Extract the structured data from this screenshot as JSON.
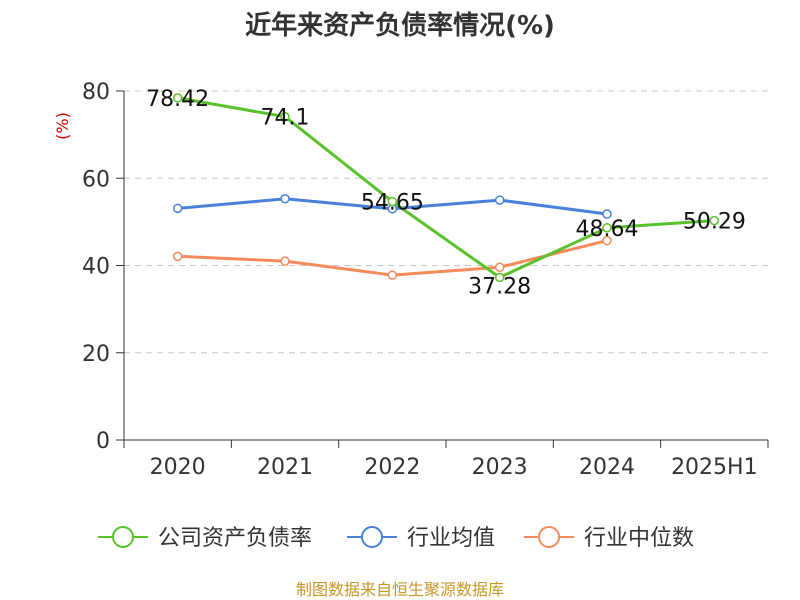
{
  "chart_data": {
    "type": "line",
    "title": "近年来资产负债率情况(%)",
    "ylabel": "(%)",
    "xlabel": "",
    "categories": [
      "2020",
      "2021",
      "2022",
      "2023",
      "2024",
      "2025H1"
    ],
    "ylim": [
      0,
      80
    ],
    "yticks": [
      "0",
      "20",
      "40",
      "60",
      "80"
    ],
    "grid": true,
    "legend_position": "bottom",
    "series": [
      {
        "name": "公司资产负债率",
        "color": "#5ac12b",
        "values": [
          78.42,
          74.1,
          54.65,
          37.28,
          48.64,
          50.29
        ],
        "labels": [
          "78.42",
          "74.1",
          "54.65",
          "37.28",
          "48.64",
          "50.29"
        ]
      },
      {
        "name": "行业均值",
        "color": "#4a7fdc",
        "values": [
          53.1,
          55.3,
          53.0,
          55.0,
          51.8,
          null
        ]
      },
      {
        "name": "行业中位数",
        "color": "#f58b5a",
        "values": [
          42.1,
          41.0,
          37.8,
          39.6,
          45.7,
          null
        ]
      }
    ],
    "source": "制图数据来自恒生聚源数据库"
  }
}
